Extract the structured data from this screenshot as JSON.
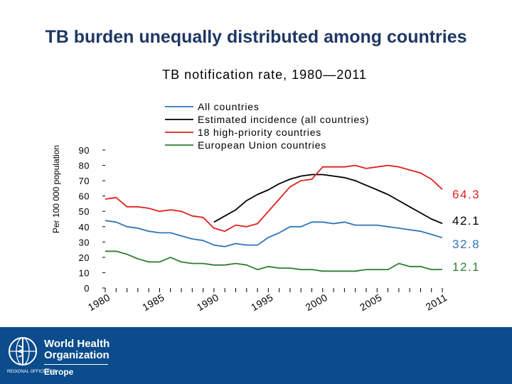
{
  "slide": {
    "title": "TB burden unequally distributed among countries"
  },
  "logo": {
    "name_line1": "World Health",
    "name_line2": "Organization",
    "regional_office": "REGIONAL OFFICE FOR",
    "region": "Europe"
  },
  "colors": {
    "all_countries": "#2e75b6",
    "estimated_incidence": "#000000",
    "high_priority": "#e02020",
    "eu": "#2e7d32",
    "title": "#1f3864",
    "footer": "#0a4c8c"
  },
  "chart_data": {
    "type": "line",
    "title": "TB notification rate, 1980—2011",
    "ylabel": "Per 100 000 population",
    "xlabel": "",
    "ylim": [
      0,
      90
    ],
    "yticks": [
      0,
      10,
      20,
      30,
      40,
      50,
      60,
      70,
      80,
      90
    ],
    "xlim": [
      1980,
      2011
    ],
    "xticks": [
      "1980",
      "1985",
      "1990",
      "1995",
      "2000",
      "2005",
      "2011"
    ],
    "legend_position": "top",
    "series": [
      {
        "name": "All countries",
        "color": "#2e75b6",
        "end_label": "32.8",
        "points": [
          [
            1980,
            44
          ],
          [
            1981,
            43
          ],
          [
            1982,
            40
          ],
          [
            1983,
            39
          ],
          [
            1984,
            37
          ],
          [
            1985,
            36
          ],
          [
            1986,
            36
          ],
          [
            1987,
            34
          ],
          [
            1988,
            32
          ],
          [
            1989,
            31
          ],
          [
            1990,
            28
          ],
          [
            1991,
            27
          ],
          [
            1992,
            29
          ],
          [
            1993,
            28
          ],
          [
            1994,
            28
          ],
          [
            1995,
            33
          ],
          [
            1996,
            36
          ],
          [
            1997,
            40
          ],
          [
            1998,
            40
          ],
          [
            1999,
            43
          ],
          [
            2000,
            43
          ],
          [
            2001,
            42
          ],
          [
            2002,
            43
          ],
          [
            2003,
            41
          ],
          [
            2004,
            41
          ],
          [
            2005,
            41
          ],
          [
            2006,
            40
          ],
          [
            2007,
            39
          ],
          [
            2008,
            38
          ],
          [
            2009,
            37
          ],
          [
            2010,
            35
          ],
          [
            2011,
            32.8
          ]
        ]
      },
      {
        "name": "Estimated incidence (all countries)",
        "color": "#000000",
        "end_label": "42.1",
        "points": [
          [
            1990,
            43
          ],
          [
            1991,
            47
          ],
          [
            1992,
            51
          ],
          [
            1993,
            57
          ],
          [
            1994,
            61
          ],
          [
            1995,
            64
          ],
          [
            1996,
            68
          ],
          [
            1997,
            71
          ],
          [
            1998,
            73
          ],
          [
            1999,
            74
          ],
          [
            2000,
            74
          ],
          [
            2001,
            73
          ],
          [
            2002,
            72
          ],
          [
            2003,
            70
          ],
          [
            2004,
            67
          ],
          [
            2005,
            64
          ],
          [
            2006,
            61
          ],
          [
            2007,
            57
          ],
          [
            2008,
            53
          ],
          [
            2009,
            49
          ],
          [
            2010,
            45
          ],
          [
            2011,
            42.1
          ]
        ]
      },
      {
        "name": "18 high-priority countries",
        "color": "#e02020",
        "end_label": "64.3",
        "points": [
          [
            1980,
            58
          ],
          [
            1981,
            59
          ],
          [
            1982,
            53
          ],
          [
            1983,
            53
          ],
          [
            1984,
            52
          ],
          [
            1985,
            50
          ],
          [
            1986,
            51
          ],
          [
            1987,
            50
          ],
          [
            1988,
            47
          ],
          [
            1989,
            46
          ],
          [
            1990,
            39
          ],
          [
            1991,
            37
          ],
          [
            1992,
            41
          ],
          [
            1993,
            40
          ],
          [
            1994,
            42
          ],
          [
            1995,
            50
          ],
          [
            1996,
            58
          ],
          [
            1997,
            66
          ],
          [
            1998,
            70
          ],
          [
            1999,
            71
          ],
          [
            2000,
            79
          ],
          [
            2001,
            79
          ],
          [
            2002,
            79
          ],
          [
            2003,
            80
          ],
          [
            2004,
            78
          ],
          [
            2005,
            79
          ],
          [
            2006,
            80
          ],
          [
            2007,
            79
          ],
          [
            2008,
            77
          ],
          [
            2009,
            75
          ],
          [
            2010,
            71
          ],
          [
            2011,
            64.3
          ]
        ]
      },
      {
        "name": "European Union countries",
        "color": "#2e7d32",
        "end_label": "12.1",
        "points": [
          [
            1980,
            24
          ],
          [
            1981,
            24
          ],
          [
            1982,
            22
          ],
          [
            1983,
            19
          ],
          [
            1984,
            17
          ],
          [
            1985,
            17
          ],
          [
            1986,
            20
          ],
          [
            1987,
            17
          ],
          [
            1988,
            16
          ],
          [
            1989,
            16
          ],
          [
            1990,
            15
          ],
          [
            1991,
            15
          ],
          [
            1992,
            16
          ],
          [
            1993,
            15
          ],
          [
            1994,
            12
          ],
          [
            1995,
            14
          ],
          [
            1996,
            13
          ],
          [
            1997,
            13
          ],
          [
            1998,
            12
          ],
          [
            1999,
            12
          ],
          [
            2000,
            11
          ],
          [
            2001,
            11
          ],
          [
            2002,
            11
          ],
          [
            2003,
            11
          ],
          [
            2004,
            12
          ],
          [
            2005,
            12
          ],
          [
            2006,
            12
          ],
          [
            2007,
            16
          ],
          [
            2008,
            14
          ],
          [
            2009,
            14
          ],
          [
            2010,
            12
          ],
          [
            2011,
            12.1
          ]
        ]
      }
    ]
  }
}
